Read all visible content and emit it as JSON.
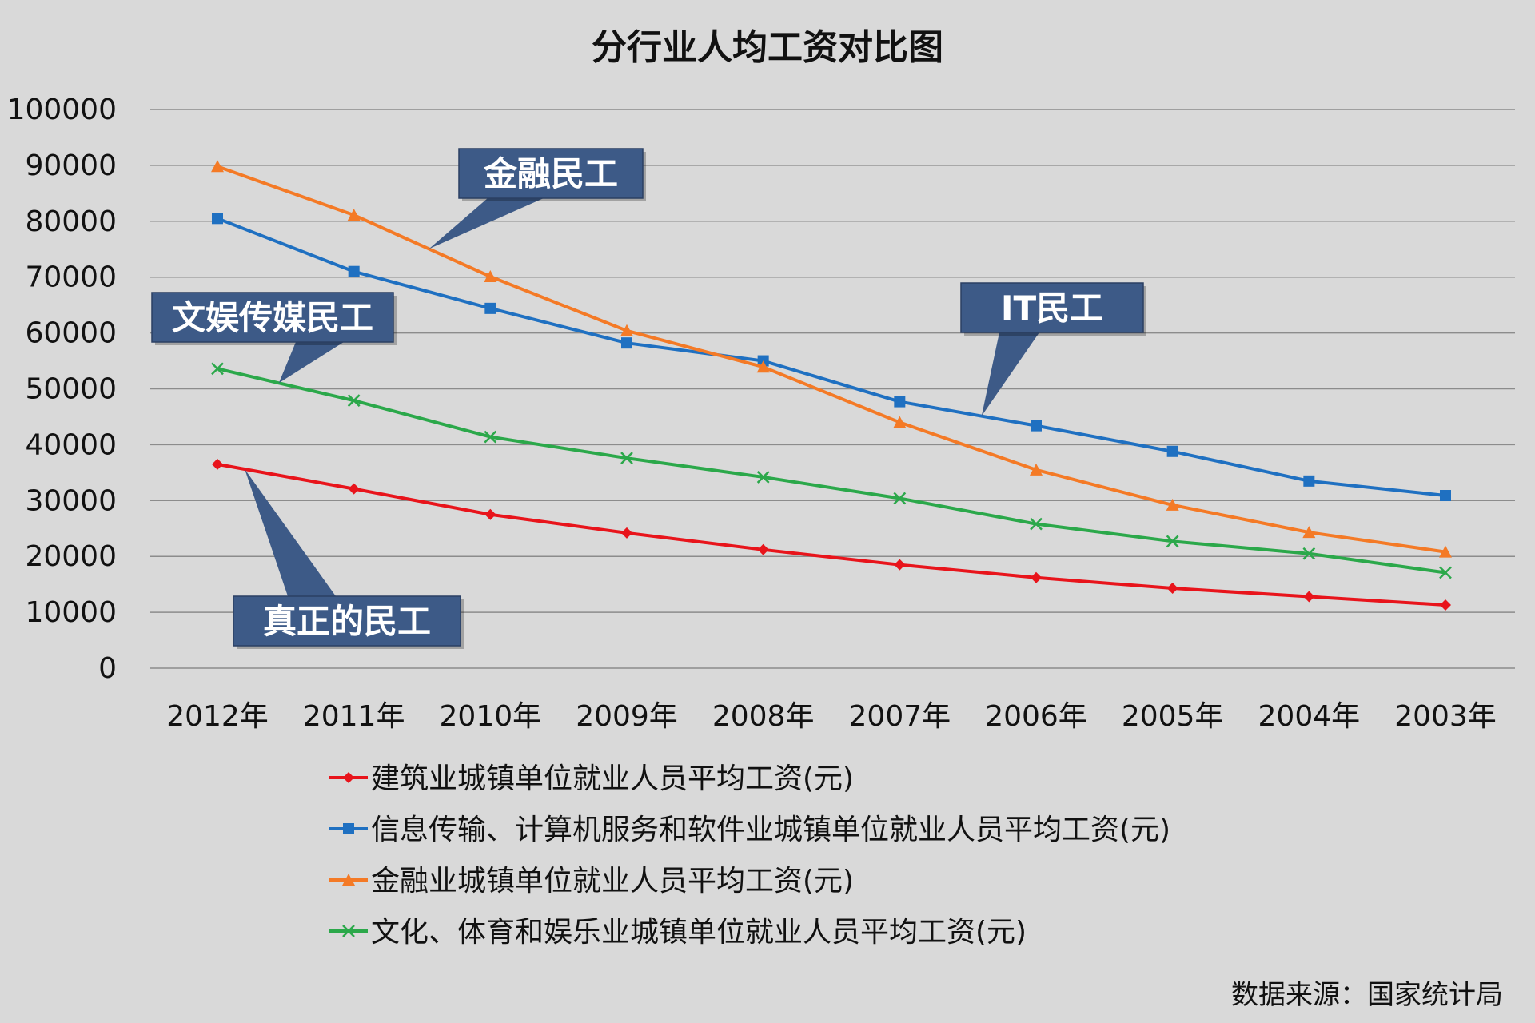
{
  "colors": {
    "background": "#d9d9d9",
    "grid": "#8c8c8c",
    "callout_fill": "#3d5a87",
    "callout_border": "#2b3f63"
  },
  "chart_data": {
    "type": "line",
    "title": "分行业人均工资对比图",
    "source_note": "数据来源：国家统计局",
    "categories": [
      "2012年",
      "2011年",
      "2010年",
      "2009年",
      "2008年",
      "2007年",
      "2006年",
      "2005年",
      "2004年",
      "2003年"
    ],
    "yticks": [
      0,
      10000,
      20000,
      30000,
      40000,
      50000,
      60000,
      70000,
      80000,
      90000,
      100000
    ],
    "ylim": [
      0,
      100000
    ],
    "grid": true,
    "legend_position": "bottom",
    "series": [
      {
        "name": "建筑业城镇单位就业人员平均工资(元)",
        "color": "#e8141b",
        "marker": "diamond",
        "values": [
          36500,
          32100,
          27500,
          24200,
          21200,
          18500,
          16200,
          14300,
          12800,
          11300
        ]
      },
      {
        "name": "信息传输、计算机服务和软件业城镇单位就业人员平均工资(元)",
        "color": "#1f70c1",
        "marker": "square",
        "values": [
          80500,
          71000,
          64400,
          58200,
          55000,
          47700,
          43400,
          38800,
          33500,
          30900
        ]
      },
      {
        "name": "金融业城镇单位就业人员平均工资(元)",
        "color": "#f47a26",
        "marker": "triangle",
        "values": [
          89800,
          81100,
          70100,
          60400,
          53900,
          44000,
          35500,
          29200,
          24300,
          20800
        ]
      },
      {
        "name": "文化、体育和娱乐业城镇单位就业人员平均工资(元)",
        "color": "#2ba84a",
        "marker": "x",
        "values": [
          53600,
          47900,
          41400,
          37600,
          34200,
          30400,
          25800,
          22700,
          20500,
          17100
        ]
      }
    ],
    "annotations": [
      {
        "text": "金融民工",
        "series": 2
      },
      {
        "text": "文娱传媒民工",
        "series": 3
      },
      {
        "text": "IT民工",
        "series": 1
      },
      {
        "text": "真正的民工",
        "series": 0
      }
    ]
  }
}
